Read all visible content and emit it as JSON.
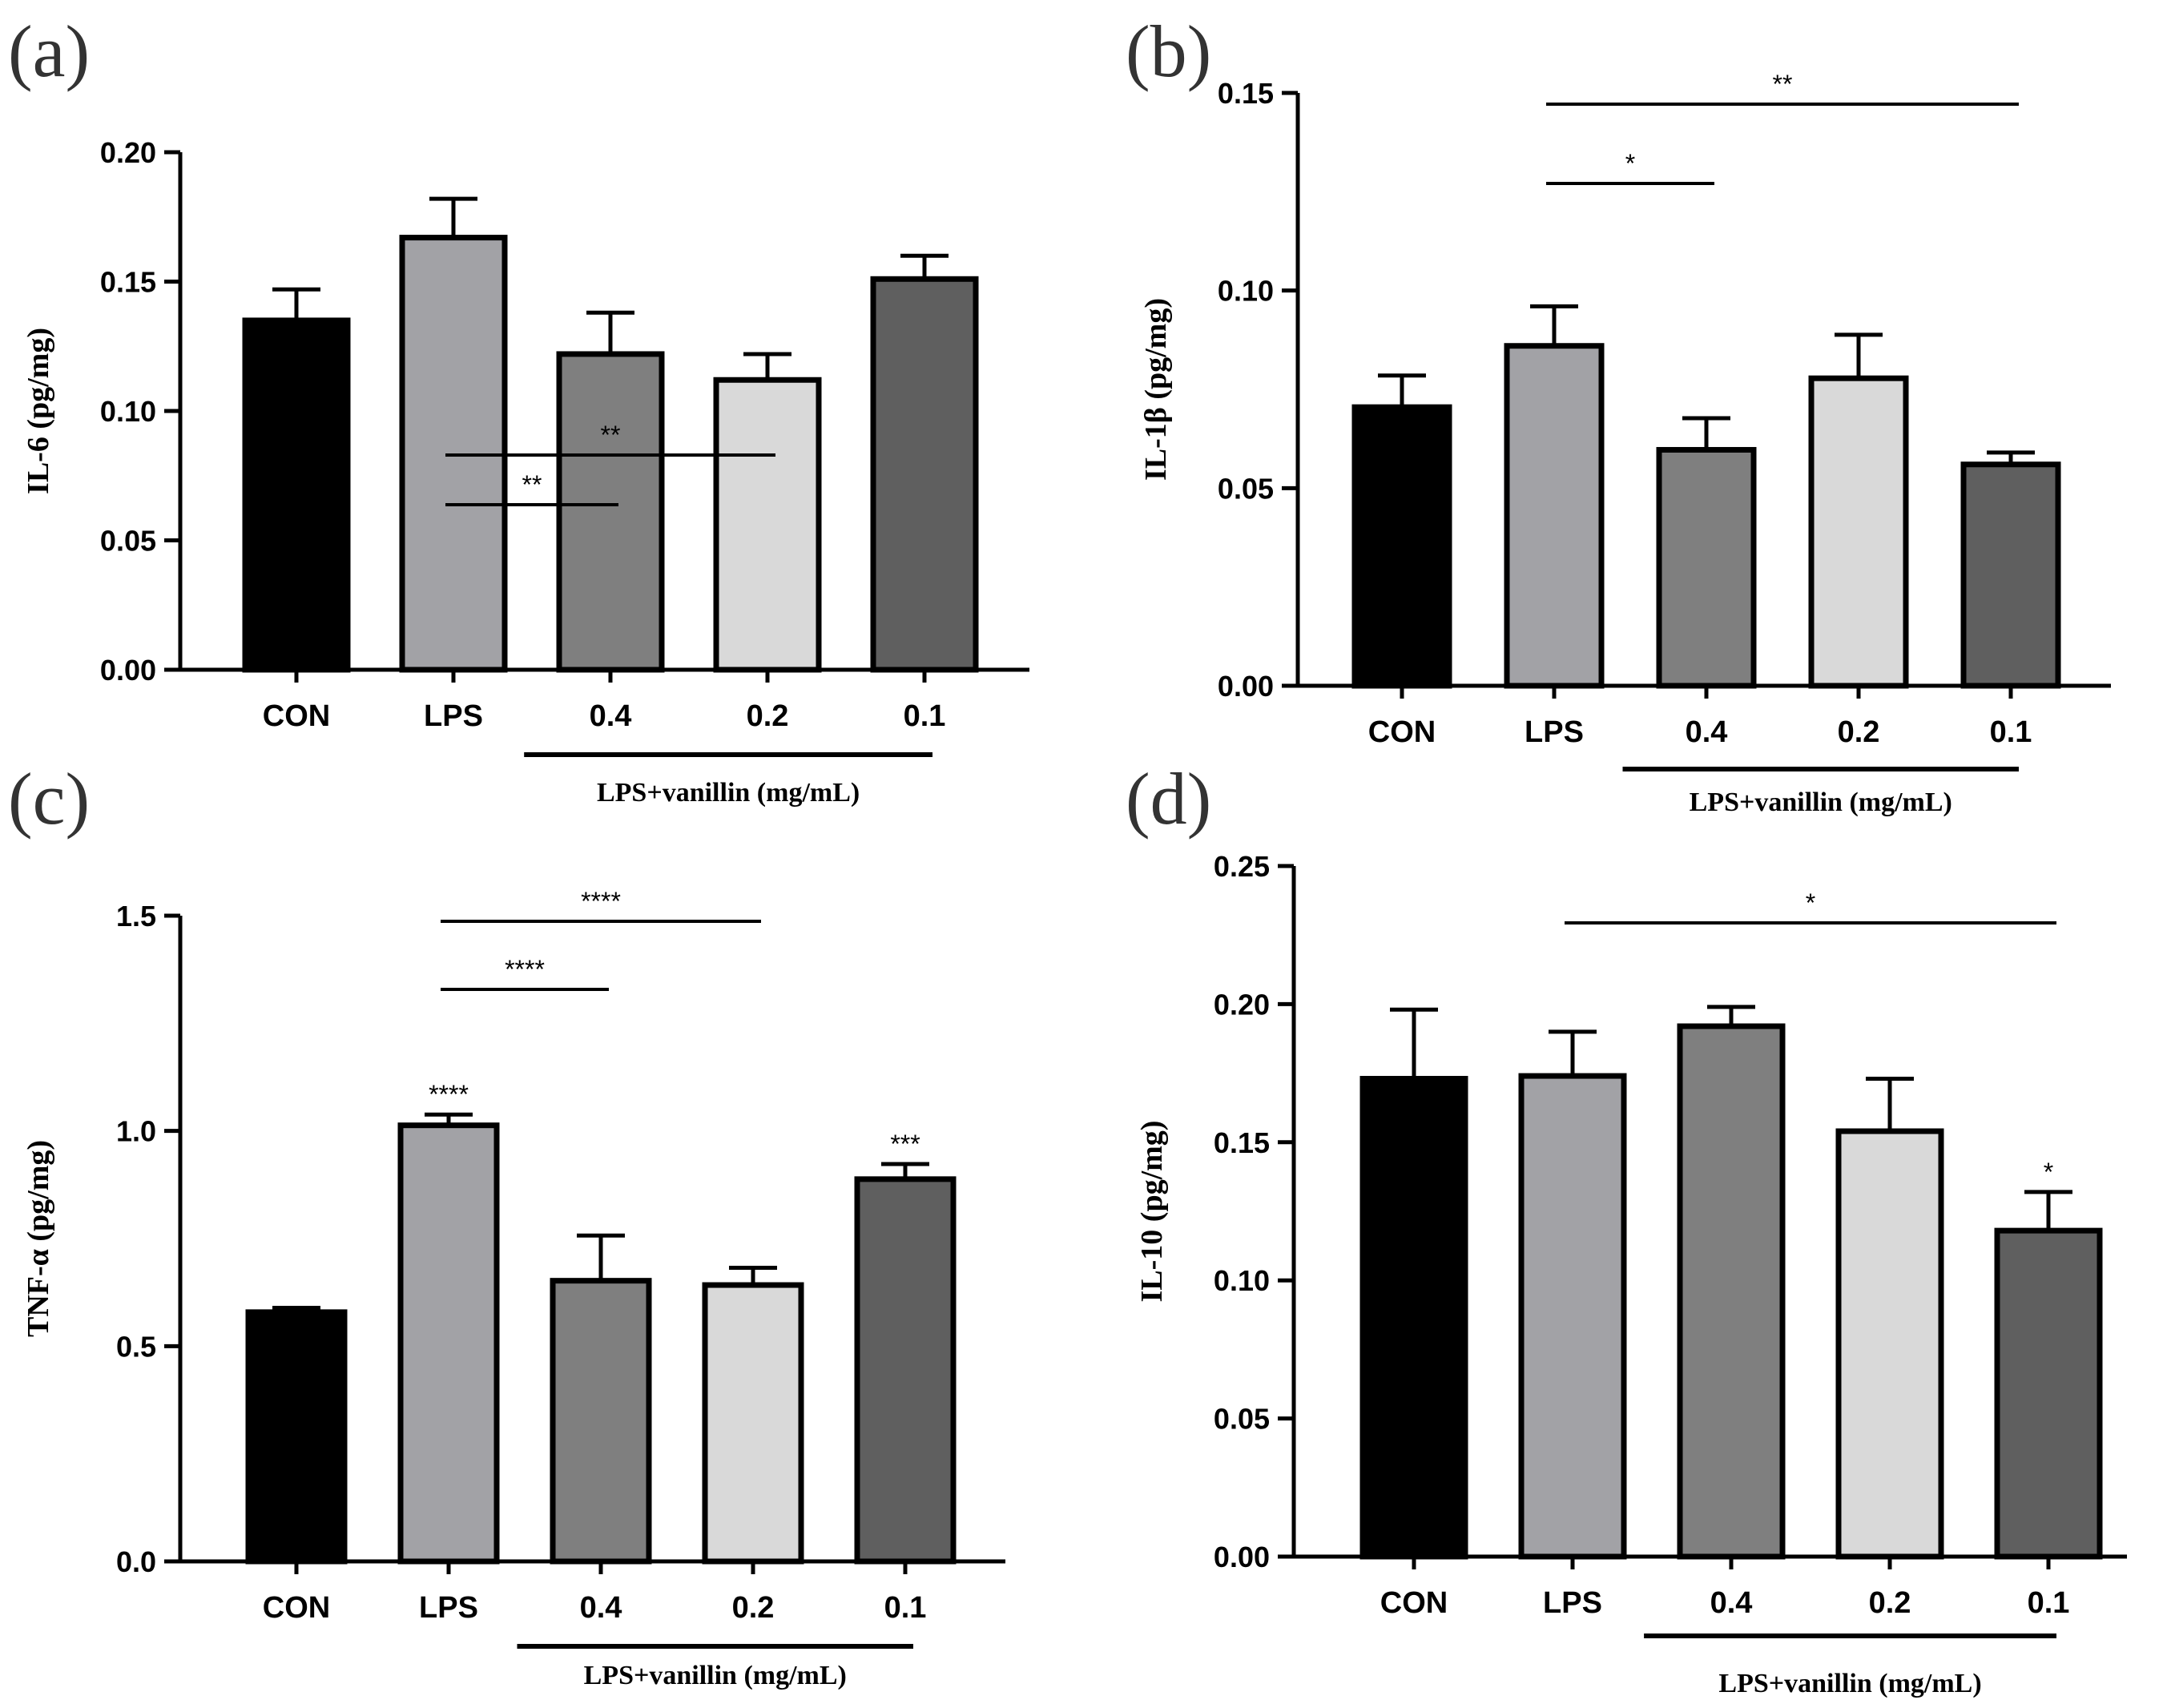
{
  "colors": {
    "CON": "#000000",
    "LPS": "#a2a2a6",
    "0.4": "#7f7f7f",
    "0.2": "#d9d9d9",
    "0.1": "#5f5f5f",
    "axis": "#000000"
  },
  "chart_data": [
    {
      "panel": "(a)",
      "type": "bar",
      "ylabel": "IL-6 (pg/mg)",
      "ylim": [
        0,
        0.2
      ],
      "yticks": [
        "0.00",
        "0.05",
        "0.10",
        "0.15",
        "0.20"
      ],
      "categories": [
        "CON",
        "LPS",
        "0.4",
        "0.2",
        "0.1"
      ],
      "values": [
        0.135,
        0.167,
        0.122,
        0.112,
        0.151
      ],
      "errors": [
        0.012,
        0.015,
        0.016,
        0.01,
        0.009
      ],
      "group_label": "LPS+vanillin (mg/mL)",
      "bar_marks": [
        "",
        "",
        "",
        "",
        ""
      ],
      "comparisons": [
        {
          "from": "LPS",
          "to": "0.2",
          "label": "**"
        },
        {
          "from": "LPS",
          "to": "0.4",
          "label": "**"
        }
      ]
    },
    {
      "panel": "(b)",
      "type": "bar",
      "ylabel": "IL-1β (pg/mg)",
      "ylim": [
        0,
        0.15
      ],
      "yticks": [
        "0.00",
        "0.05",
        "0.10",
        "0.15"
      ],
      "categories": [
        "CON",
        "LPS",
        "0.4",
        "0.2",
        "0.1"
      ],
      "values": [
        0.0705,
        0.086,
        0.0597,
        0.0778,
        0.056
      ],
      "errors": [
        0.008,
        0.01,
        0.008,
        0.011,
        0.003
      ],
      "group_label": "LPS+vanillin (mg/mL)",
      "bar_marks": [
        "",
        "",
        "",
        "",
        ""
      ],
      "comparisons": [
        {
          "from": "LPS",
          "to": "0.1",
          "label": "**"
        },
        {
          "from": "LPS",
          "to": "0.4",
          "label": "*"
        }
      ]
    },
    {
      "panel": "(c)",
      "type": "bar",
      "ylabel": "TNF-α (pg/mg)",
      "ylim": [
        0,
        1.5
      ],
      "yticks": [
        "0.0",
        "0.5",
        "1.0",
        "1.5"
      ],
      "categories": [
        "CON",
        "LPS",
        "0.4",
        "0.2",
        "0.1"
      ],
      "values": [
        0.579,
        1.013,
        0.652,
        0.642,
        0.888
      ],
      "errors": [
        0.01,
        0.025,
        0.105,
        0.04,
        0.035
      ],
      "group_label": "LPS+vanillin (mg/mL)",
      "bar_marks": [
        "",
        "****",
        "",
        "",
        "***"
      ],
      "comparisons": [
        {
          "from": "LPS",
          "to": "0.2",
          "label": "****"
        },
        {
          "from": "LPS",
          "to": "0.4",
          "label": "****"
        }
      ]
    },
    {
      "panel": "(d)",
      "type": "bar",
      "ylabel": "IL-10 (pg/mg)",
      "ylim": [
        0,
        0.25
      ],
      "yticks": [
        "0.00",
        "0.05",
        "0.10",
        "0.15",
        "0.20",
        "0.25"
      ],
      "categories": [
        "CON",
        "LPS",
        "0.4",
        "0.2",
        "0.1"
      ],
      "values": [
        0.173,
        0.174,
        0.192,
        0.154,
        0.118
      ],
      "errors": [
        0.025,
        0.016,
        0.007,
        0.019,
        0.014
      ],
      "group_label": "LPS+vanillin (mg/mL)",
      "bar_marks": [
        "",
        "",
        "",
        "",
        "*"
      ],
      "comparisons": [
        {
          "from": "LPS",
          "to": "0.1",
          "label": "*"
        }
      ]
    }
  ]
}
